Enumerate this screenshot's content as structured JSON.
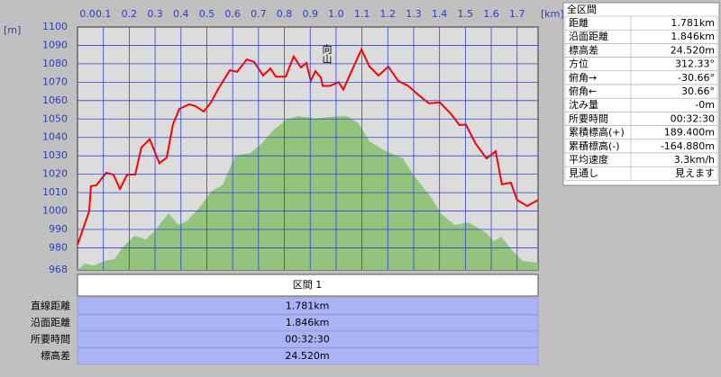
{
  "chart_data": {
    "type": "line",
    "y_label": "[m]",
    "x_label": "[km]",
    "annotation": "向山",
    "xlim": [
      0,
      1.781
    ],
    "ylim": [
      968,
      1100
    ],
    "xticks": [
      {
        "value": 0,
        "label": "0.0"
      },
      0.1,
      0.2,
      0.3,
      0.4,
      0.5,
      0.6,
      0.7,
      0.8,
      0.9,
      {
        "value": 1,
        "label": "1.0"
      },
      1.1,
      1.2,
      1.3,
      1.4,
      1.5,
      1.6,
      1.7
    ],
    "yticks": [
      968,
      980,
      990,
      1000,
      1010,
      1020,
      1030,
      1040,
      1050,
      1060,
      1070,
      1080,
      1090,
      1100
    ],
    "grid": true,
    "series": [
      {
        "type": "area",
        "color": "#92c47e",
        "x": [
          0,
          0.028,
          0.063,
          0.105,
          0.143,
          0.174,
          0.22,
          0.265,
          0.3,
          0.352,
          0.39,
          0.422,
          0.477,
          0.519,
          0.561,
          0.61,
          0.669,
          0.711,
          0.756,
          0.808,
          0.857,
          0.92,
          0.972,
          1.042,
          1.087,
          1.129,
          1.185,
          1.258,
          1.303,
          1.366,
          1.408,
          1.46,
          1.512,
          1.582,
          1.61,
          1.638,
          1.686,
          1.721,
          1.781
        ],
        "values": [
          968,
          971.4,
          970.4,
          972.9,
          973.9,
          980.2,
          986.6,
          984.6,
          989.5,
          998.8,
          992.5,
          994.4,
          1002.7,
          1011,
          1014,
          1030,
          1031.6,
          1036.5,
          1043.8,
          1049.7,
          1051.6,
          1050.2,
          1051.1,
          1051.6,
          1047.7,
          1037.9,
          1033,
          1028.6,
          1018.9,
          1007.6,
          998.3,
          992.4,
          993.9,
          988,
          983.6,
          986.1,
          977.8,
          972.9,
          971.9
        ]
      },
      {
        "type": "line",
        "color": "#ff0000",
        "x": [
          0,
          0.045,
          0.052,
          0.073,
          0.111,
          0.139,
          0.164,
          0.192,
          0.223,
          0.247,
          0.279,
          0.317,
          0.345,
          0.369,
          0.394,
          0.432,
          0.456,
          0.488,
          0.516,
          0.547,
          0.589,
          0.617,
          0.655,
          0.683,
          0.718,
          0.746,
          0.767,
          0.805,
          0.836,
          0.864,
          0.885,
          0.902,
          0.92,
          0.941,
          0.948,
          0.976,
          1.01,
          1.028,
          1.063,
          1.098,
          1.129,
          1.164,
          1.202,
          1.24,
          1.279,
          1.321,
          1.359,
          1.401,
          1.443,
          1.477,
          1.502,
          1.54,
          1.582,
          1.617,
          1.641,
          1.676,
          1.7,
          1.739,
          1.781
        ],
        "values": [
          981.7,
          999.8,
          1013.5,
          1014,
          1020.8,
          1019.8,
          1012,
          1019.8,
          1019.8,
          1034.5,
          1039,
          1026,
          1029,
          1047,
          1055.5,
          1058,
          1057,
          1054,
          1059,
          1067,
          1076.5,
          1075.6,
          1082.4,
          1081,
          1073.6,
          1077.5,
          1073,
          1073,
          1084,
          1078,
          1080.5,
          1070.7,
          1076,
          1072.6,
          1068,
          1068,
          1070,
          1066,
          1077,
          1087.8,
          1078.5,
          1073.6,
          1078.5,
          1070.7,
          1068,
          1062.8,
          1058.5,
          1059,
          1053,
          1046.7,
          1047,
          1036.5,
          1028.6,
          1032.5,
          1014.5,
          1015.4,
          1006,
          1002.7,
          1006
        ]
      }
    ]
  },
  "summary": {
    "title": "全区間",
    "rows": [
      [
        "距離",
        "1.781km"
      ],
      [
        "沿面距離",
        "1.846km"
      ],
      [
        "標高差",
        "24.520m"
      ],
      [
        "方位",
        "312.33°"
      ],
      [
        "俯角→",
        "-30.66°"
      ],
      [
        "俯角←",
        "30.66°"
      ],
      [
        "沈み量",
        "-0m"
      ],
      [
        "所要時間",
        "00:32:30"
      ],
      [
        "累積標高(+)",
        "189.400m"
      ],
      [
        "累積標高(-)",
        "-164.880m"
      ],
      [
        "平均速度",
        "3.3km/h"
      ],
      [
        "見通し",
        "見えます"
      ]
    ]
  },
  "section": {
    "header": "区間 1",
    "rows": [
      [
        "直線距離",
        "1.781km"
      ],
      [
        "沿面距離",
        "1.846km"
      ],
      [
        "所要時間",
        "00:32:30"
      ],
      [
        "標高差",
        "24.520m"
      ]
    ]
  }
}
